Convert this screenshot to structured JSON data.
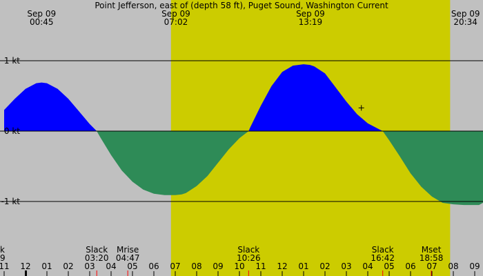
{
  "chart_data": {
    "type": "area",
    "title": "Point Jefferson, east of (depth 58 ft), Puget Sound, Washington Current",
    "unit": "kt",
    "y_ticks": [
      {
        "value": 1,
        "label": "1 kt"
      },
      {
        "value": 0,
        "label": "0 kt"
      },
      {
        "value": -1,
        "label": "-1 kt"
      }
    ],
    "ylim": [
      -1.95,
      1.0
    ],
    "xlim": [
      -1.0,
      22.5
    ],
    "daylight": {
      "start": 6.8,
      "end": 19.85,
      "color": "#cccc00"
    },
    "night_color": "#c0c0c0",
    "flood_color": "#0000ff",
    "ebb_color": "#2e8b57",
    "top_labels": [
      {
        "date": "Sep 09",
        "time": "00:45",
        "x": 0.75
      },
      {
        "date": "Sep 09",
        "time": "07:02",
        "x": 7.03
      },
      {
        "date": "Sep 09",
        "time": "13:19",
        "x": 13.32
      },
      {
        "date": "Sep 09",
        "time": "20:34",
        "x": 20.57
      }
    ],
    "events": [
      {
        "name": "Slack",
        "time": "03:20",
        "x": 3.33,
        "marker": "#ff0000"
      },
      {
        "name": "Mrise",
        "time": "04:47",
        "x": 4.78,
        "marker": "#ff0000"
      },
      {
        "name": "Slack",
        "time": "10:26",
        "x": 10.43,
        "marker": "#ff0000"
      },
      {
        "name": "Slack",
        "time": "16:42",
        "x": 16.7,
        "marker": "#ff0000"
      },
      {
        "name": "Mset",
        "time": "18:58",
        "x": 18.97,
        "marker": "#ff0000"
      }
    ],
    "edge_labels": {
      "event": "k",
      "time": "9"
    },
    "hour_ticks": [
      {
        "x": -1,
        "label": "11"
      },
      {
        "x": 0,
        "label": "12"
      },
      {
        "x": 1,
        "label": "01"
      },
      {
        "x": 2,
        "label": "02"
      },
      {
        "x": 3,
        "label": "03"
      },
      {
        "x": 4,
        "label": "04"
      },
      {
        "x": 5,
        "label": "05"
      },
      {
        "x": 6,
        "label": "06"
      },
      {
        "x": 7,
        "label": "07"
      },
      {
        "x": 8,
        "label": "08"
      },
      {
        "x": 9,
        "label": "09"
      },
      {
        "x": 10,
        "label": "10"
      },
      {
        "x": 11,
        "label": "11"
      },
      {
        "x": 12,
        "label": "12"
      },
      {
        "x": 13,
        "label": "01"
      },
      {
        "x": 14,
        "label": "02"
      },
      {
        "x": 15,
        "label": "03"
      },
      {
        "x": 16,
        "label": "04"
      },
      {
        "x": 17,
        "label": "05"
      },
      {
        "x": 18,
        "label": "06"
      },
      {
        "x": 19,
        "label": "07"
      },
      {
        "x": 20,
        "label": "08"
      },
      {
        "x": 21,
        "label": "09"
      }
    ],
    "midnight_x": 0,
    "series": [
      {
        "x": [
          -1.0,
          -0.5,
          0.0,
          0.5,
          0.75,
          1.0,
          1.5,
          2.0,
          2.5,
          3.0,
          3.33,
          3.5,
          4.0,
          4.5,
          5.0,
          5.5,
          6.0,
          6.5,
          7.0,
          7.3,
          7.5,
          8.0,
          8.5,
          9.0,
          9.5,
          10.0,
          10.43,
          10.5,
          11.0,
          11.5,
          12.0,
          12.5,
          13.0,
          13.3,
          13.5,
          14.0,
          14.5,
          15.0,
          15.5,
          16.0,
          16.5,
          16.7,
          17.0,
          17.5,
          18.0,
          18.5,
          19.0,
          19.5,
          20.0,
          20.5,
          21.0,
          21.2,
          21.5,
          22.0,
          22.5
        ],
        "values": [
          0.3,
          0.46,
          0.6,
          0.68,
          0.69,
          0.68,
          0.6,
          0.46,
          0.28,
          0.1,
          0.0,
          -0.09,
          -0.34,
          -0.56,
          -0.72,
          -0.83,
          -0.89,
          -0.91,
          -0.91,
          -0.9,
          -0.88,
          -0.78,
          -0.64,
          -0.45,
          -0.26,
          -0.1,
          0.0,
          0.05,
          0.36,
          0.64,
          0.84,
          0.93,
          0.95,
          0.94,
          0.92,
          0.82,
          0.62,
          0.42,
          0.24,
          0.11,
          0.03,
          0.0,
          -0.13,
          -0.36,
          -0.6,
          -0.79,
          -0.93,
          -1.02,
          -1.04,
          -1.05,
          -1.05,
          -1.05,
          -1.0,
          -0.88,
          -0.7
        ]
      }
    ],
    "crosshair": {
      "x": 15.7,
      "y": 0.33
    }
  }
}
